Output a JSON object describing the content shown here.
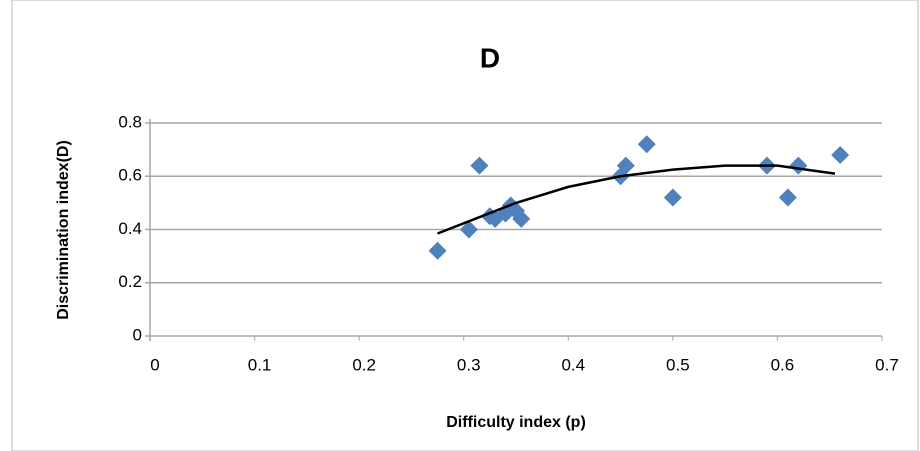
{
  "chart_data": {
    "type": "scatter",
    "title": "D",
    "x_label": "Difficulty index (p)",
    "y_label": "Discrimination index(D)",
    "series": [
      {
        "name": null,
        "color": "#4f81bd",
        "x": [
          0.275,
          0.305,
          0.315,
          0.325,
          0.33,
          0.34,
          0.345,
          0.35,
          0.355,
          0.45,
          0.455,
          0.475,
          0.5,
          0.59,
          0.61,
          0.62,
          0.66
        ],
        "values": [
          0.32,
          0.4,
          0.64,
          0.45,
          0.44,
          0.46,
          0.49,
          0.47,
          0.44,
          0.6,
          0.64,
          0.72,
          0.52,
          0.64,
          0.52,
          0.64,
          0.68
        ]
      }
    ],
    "trendline": {
      "color": "#000000",
      "x": [
        0.275,
        0.35,
        0.4,
        0.45,
        0.5,
        0.55,
        0.6,
        0.655
      ],
      "y": [
        0.385,
        0.5,
        0.56,
        0.6,
        0.625,
        0.64,
        0.64,
        0.61
      ]
    },
    "xlim": [
      0,
      0.7
    ],
    "xticks": [
      0,
      0.1,
      0.2,
      0.3,
      0.4,
      0.5,
      0.6,
      0.7
    ],
    "ylim": [
      0,
      0.8
    ],
    "yticks": [
      0,
      0.2,
      0.4,
      0.6,
      0.8
    ],
    "grid": true
  }
}
